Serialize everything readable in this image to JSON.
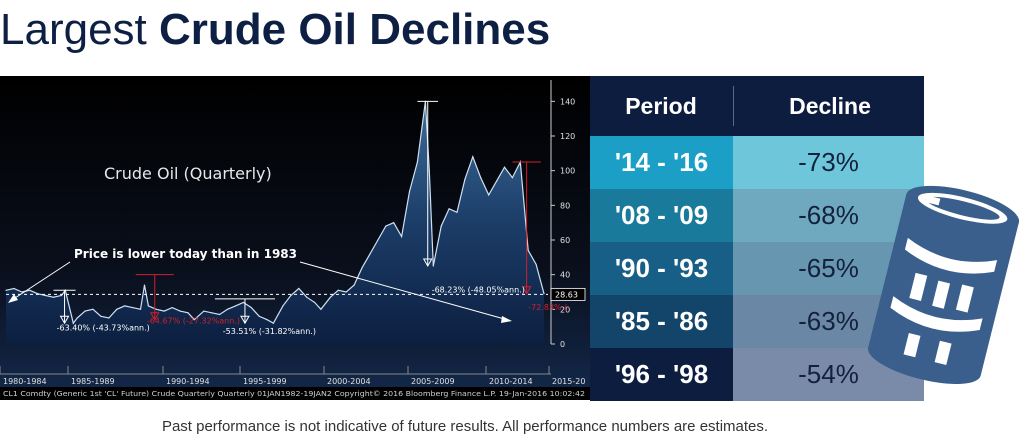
{
  "title": {
    "light": "Largest ",
    "bold": "Crude Oil Declines"
  },
  "chart_data": {
    "type": "area",
    "title": "Crude Oil (Quarterly)",
    "ylim": [
      0,
      150
    ],
    "yticks": [
      0,
      20,
      40,
      60,
      80,
      100,
      120,
      140
    ],
    "xticks": [
      "1980-1984",
      "1985-1989",
      "1990-1994",
      "1995-1999",
      "2000-2004",
      "2005-2009",
      "2010-2014",
      "2015-20"
    ],
    "grid": false,
    "series": [
      {
        "x": [
          1982.0,
          1982.5,
          1983.0,
          1983.5,
          1984.0,
          1984.5,
          1985.0,
          1985.5,
          1985.75,
          1986.25,
          1986.5,
          1987.0,
          1987.5,
          1988.0,
          1988.5,
          1989.0,
          1989.5,
          1990.0,
          1990.5,
          1990.75,
          1991.0,
          1991.5,
          1992.0,
          1992.5,
          1993.0,
          1993.5,
          1993.9,
          1994.5,
          1995.0,
          1995.5,
          1996.0,
          1996.5,
          1997.0,
          1997.5,
          1998.0,
          1998.5,
          1998.9,
          1999.5,
          2000.0,
          2000.5,
          2001.0,
          2001.5,
          2001.9,
          2002.5,
          2003.0,
          2003.5,
          2004.0,
          2004.5,
          2005.0,
          2005.5,
          2006.0,
          2006.5,
          2007.0,
          2007.5,
          2008.0,
          2008.5,
          2008.75,
          2009.0,
          2009.5,
          2010.0,
          2010.5,
          2011.0,
          2011.5,
          2012.0,
          2012.5,
          2013.0,
          2013.5,
          2014.0,
          2014.5,
          2015.0,
          2015.5,
          2016.0
        ],
        "values": [
          31,
          32,
          30,
          31,
          29,
          28,
          27,
          28,
          31,
          12,
          15,
          19,
          20,
          16,
          15,
          20,
          22,
          21,
          20,
          34,
          22,
          20,
          19,
          21,
          19,
          18,
          14,
          19,
          18,
          17,
          20,
          22,
          24,
          21,
          16,
          14,
          12,
          22,
          28,
          32,
          27,
          24,
          20,
          27,
          31,
          30,
          34,
          44,
          52,
          60,
          68,
          70,
          62,
          88,
          105,
          140,
          100,
          45,
          68,
          78,
          76,
          95,
          108,
          96,
          86,
          94,
          102,
          96,
          105,
          54,
          46,
          29
        ]
      }
    ],
    "current_value": "28.63",
    "text_label": "Crude Oil (Quarterly)",
    "callout": "Price is lower today than in 1983",
    "annotations": [
      "-63.40% (-43.73%ann.)",
      "-64.67% (-27.32%ann.)",
      "-53.51% (-31.82%ann.)",
      "-68.23% (-48.05%ann.)",
      "-72.83% (-"
    ],
    "footer": "CL1 Comdty (Generic 1st 'CL' Future) Crude Quarterly  Quarterly 01JAN1982-19JAN2 Copyright© 2016 Bloomberg Finance L.P.  19-Jan-2016 10:02:42"
  },
  "table": {
    "headers": [
      "Period",
      "Decline"
    ],
    "rows": [
      {
        "period": "'14 - '16",
        "decline": "-73%",
        "c1": "#1c9fc6",
        "c2": "#6ec6da"
      },
      {
        "period": "'08 - '09",
        "decline": "-68%",
        "c1": "#1a7a9c",
        "c2": "#6fa9c0"
      },
      {
        "period": "'90 - '93",
        "decline": "-65%",
        "c1": "#175f86",
        "c2": "#6796b0"
      },
      {
        "period": "'85 - '86",
        "decline": "-63%",
        "c1": "#13456a",
        "c2": "#6a88a6"
      },
      {
        "period": "'96 - '98",
        "decline": "-54%",
        "c1": "#0d1d3f",
        "c2": "#7a8aa9"
      }
    ]
  },
  "footnote": "Past performance is not indicative of future results. All performance numbers are estimates.",
  "colors": {
    "navy": "#0e1f44",
    "barrel": "#3a5f8c",
    "chart_bg": "#000000",
    "area": "#10284f",
    "line": "#cfe0f0",
    "marker_red": "#d0202a"
  },
  "icon": "oil-barrel-icon"
}
